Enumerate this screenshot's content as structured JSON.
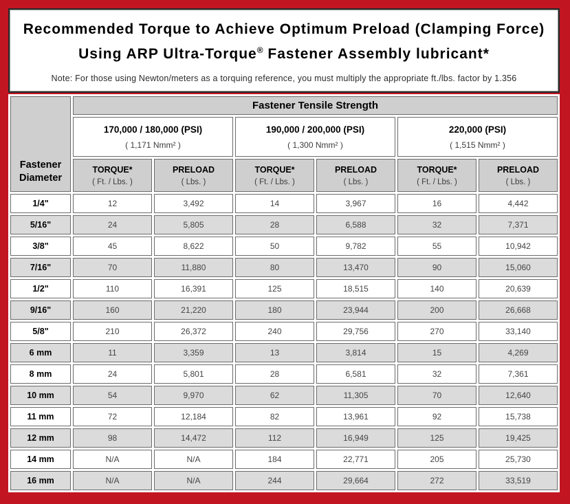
{
  "title": {
    "line1": "Recommended Torque to Achieve Optimum Preload (Clamping Force)",
    "line2_prefix": "Using ARP Ultra-Torque",
    "registered_mark": "®",
    "line2_suffix": " Fastener Assembly lubricant*",
    "note": "Note: For those using Newton/meters as a torquing reference, you must multiply the appropriate ft./lbs. factor by 1.356"
  },
  "table": {
    "main_header": "Fastener Tensile Strength",
    "corner": {
      "line1": "Fastener",
      "line2": "Diameter"
    },
    "groups": [
      {
        "psi": "170,000 / 180,000 (PSI)",
        "nmm": "( 1,171 Nmm² )"
      },
      {
        "psi": "190,000 / 200,000 (PSI)",
        "nmm": "( 1,300 Nmm² )"
      },
      {
        "psi": "220,000 (PSI)",
        "nmm": "( 1,515 Nmm² )"
      }
    ],
    "col_headers": {
      "torque_label": "TORQUE*",
      "torque_unit": "( Ft. / Lbs. )",
      "preload_label": "PRELOAD",
      "preload_unit": "( Lbs. )"
    },
    "rows": [
      {
        "diameter": "1/4\"",
        "values": [
          "12",
          "3,492",
          "14",
          "3,967",
          "16",
          "4,442"
        ]
      },
      {
        "diameter": "5/16\"",
        "values": [
          "24",
          "5,805",
          "28",
          "6,588",
          "32",
          "7,371"
        ]
      },
      {
        "diameter": "3/8\"",
        "values": [
          "45",
          "8,622",
          "50",
          "9,782",
          "55",
          "10,942"
        ]
      },
      {
        "diameter": "7/16\"",
        "values": [
          "70",
          "11,880",
          "80",
          "13,470",
          "90",
          "15,060"
        ]
      },
      {
        "diameter": "1/2\"",
        "values": [
          "110",
          "16,391",
          "125",
          "18,515",
          "140",
          "20,639"
        ]
      },
      {
        "diameter": "9/16\"",
        "values": [
          "160",
          "21,220",
          "180",
          "23,944",
          "200",
          "26,668"
        ]
      },
      {
        "diameter": "5/8\"",
        "values": [
          "210",
          "26,372",
          "240",
          "29,756",
          "270",
          "33,140"
        ]
      },
      {
        "diameter": "6 mm",
        "values": [
          "11",
          "3,359",
          "13",
          "3,814",
          "15",
          "4,269"
        ]
      },
      {
        "diameter": "8 mm",
        "values": [
          "24",
          "5,801",
          "28",
          "6,581",
          "32",
          "7,361"
        ]
      },
      {
        "diameter": "10 mm",
        "values": [
          "54",
          "9,970",
          "62",
          "11,305",
          "70",
          "12,640"
        ]
      },
      {
        "diameter": "11 mm",
        "values": [
          "72",
          "12,184",
          "82",
          "13,961",
          "92",
          "15,738"
        ]
      },
      {
        "diameter": "12 mm",
        "values": [
          "98",
          "14,472",
          "112",
          "16,949",
          "125",
          "19,425"
        ]
      },
      {
        "diameter": "14 mm",
        "values": [
          "N/A",
          "N/A",
          "184",
          "22,771",
          "205",
          "25,730"
        ]
      },
      {
        "diameter": "16 mm",
        "values": [
          "N/A",
          "N/A",
          "244",
          "29,664",
          "272",
          "33,519"
        ]
      }
    ]
  },
  "colors": {
    "frame_red": "#c11622",
    "header_gray": "#cfcfcf",
    "row_alt_gray": "#dbdbdb",
    "cell_border": "#6b6b6b"
  }
}
